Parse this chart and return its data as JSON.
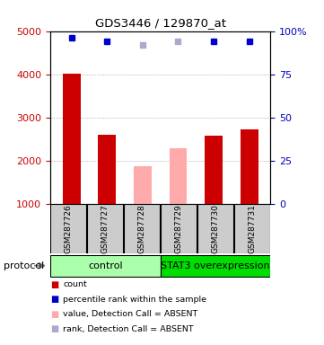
{
  "title": "GDS3446 / 129870_at",
  "samples": [
    "GSM287726",
    "GSM287727",
    "GSM287728",
    "GSM287729",
    "GSM287730",
    "GSM287731"
  ],
  "bar_values": [
    4020,
    2600,
    1870,
    2280,
    2570,
    2730
  ],
  "bar_colors": [
    "#cc0000",
    "#cc0000",
    "#ffaaaa",
    "#ffaaaa",
    "#cc0000",
    "#cc0000"
  ],
  "percentile_values": [
    96,
    94,
    92,
    94,
    94,
    94
  ],
  "percentile_colors": [
    "#0000cc",
    "#0000cc",
    "#aaaacc",
    "#aaaacc",
    "#0000cc",
    "#0000cc"
  ],
  "ylim_left": [
    1000,
    5000
  ],
  "yticks_left": [
    1000,
    2000,
    3000,
    4000,
    5000
  ],
  "ytick_labels_left": [
    "1000",
    "2000",
    "3000",
    "4000",
    "5000"
  ],
  "yticks_right": [
    0,
    25,
    50,
    75,
    100
  ],
  "ytick_labels_right": [
    "0",
    "25",
    "50",
    "75",
    "100%"
  ],
  "ylabel_left_color": "#cc0000",
  "ylabel_right_color": "#0000bb",
  "group1_label": "control",
  "group2_label": "STAT3 overexpression",
  "group1_color": "#aaffaa",
  "group2_color": "#00dd00",
  "protocol_label": "protocol",
  "legend_items": [
    {
      "color": "#cc0000",
      "label": "count"
    },
    {
      "color": "#0000cc",
      "label": "percentile rank within the sample"
    },
    {
      "color": "#ffaaaa",
      "label": "value, Detection Call = ABSENT"
    },
    {
      "color": "#aaaacc",
      "label": "rank, Detection Call = ABSENT"
    }
  ],
  "background_color": "#ffffff",
  "plot_bg_color": "#ffffff",
  "sample_bg_color": "#cccccc",
  "bar_width": 0.5
}
